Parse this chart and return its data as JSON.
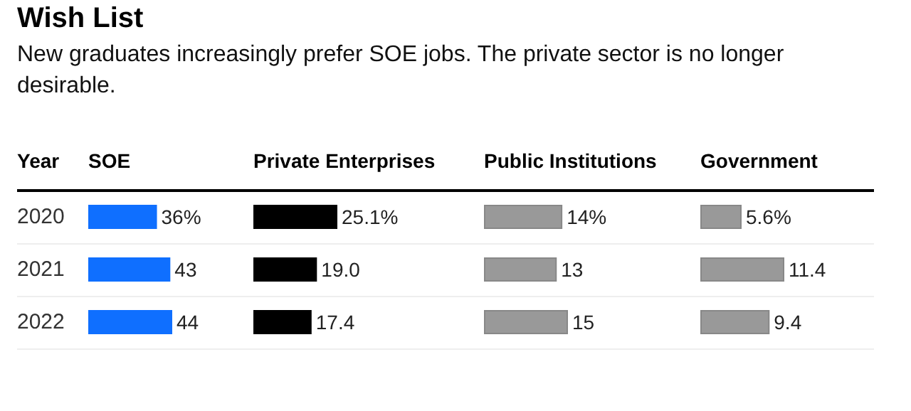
{
  "chart_data": [
    {
      "type": "bar",
      "orientation": "horizontal",
      "title": "Wish List",
      "subtitle": "New graduates increasingly prefer SOE jobs. The private sector is no longer desirable.",
      "ylabel": "Year",
      "categories": [
        "2020",
        "2021",
        "2022"
      ],
      "tick_labels": "y",
      "series": [
        {
          "name": "SOE",
          "color": "#0f6fff",
          "values": [
            36,
            43,
            44
          ],
          "value_labels": [
            "36%",
            "43",
            "44"
          ]
        }
      ]
    },
    {
      "type": "bar",
      "orientation": "horizontal",
      "categories": [
        "2020",
        "2021",
        "2022"
      ],
      "tick_labels": false,
      "series": [
        {
          "name": "Private Enterprises",
          "color": "#000000",
          "values": [
            25.1,
            19.0,
            17.4
          ],
          "value_labels": [
            "25.1%",
            "19.0",
            "17.4"
          ]
        }
      ]
    },
    {
      "type": "bar",
      "orientation": "horizontal",
      "categories": [
        "2020",
        "2021",
        "2022"
      ],
      "tick_labels": false,
      "series": [
        {
          "name": "Public Institutions",
          "color": "#999999",
          "values": [
            14,
            13,
            15
          ],
          "value_labels": [
            "14%",
            "13",
            "15"
          ]
        }
      ]
    },
    {
      "type": "bar",
      "orientation": "horizontal",
      "categories": [
        "2020",
        "2021",
        "2022"
      ],
      "tick_labels": false,
      "series": [
        {
          "name": "Government",
          "color": "#999999",
          "values": [
            5.6,
            11.4,
            9.4
          ],
          "value_labels": [
            "5.6%",
            "11.4",
            "9.4"
          ]
        }
      ]
    }
  ]
}
